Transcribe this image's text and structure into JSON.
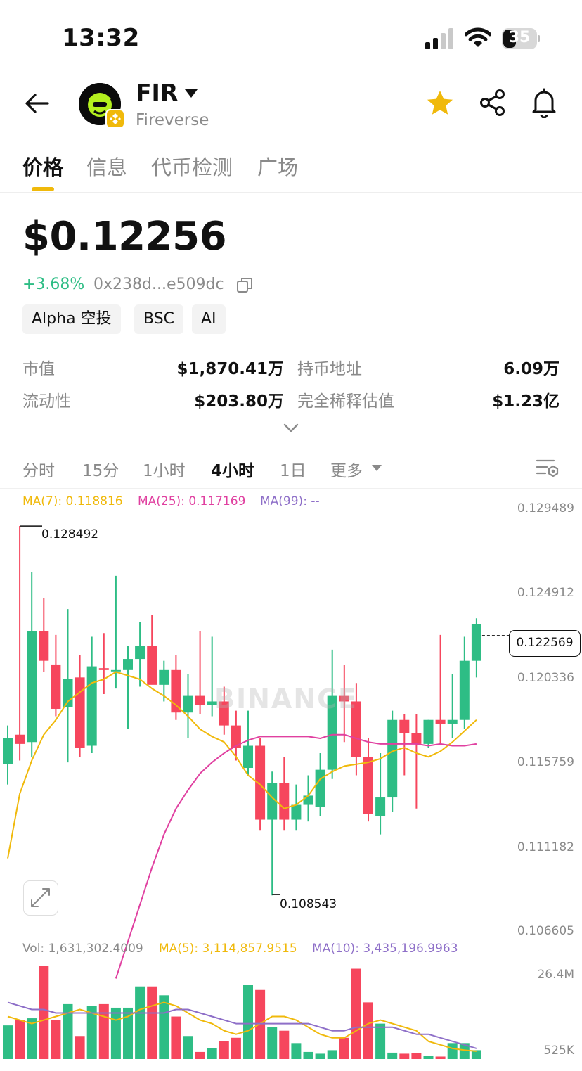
{
  "status_bar": {
    "time": "13:32",
    "battery": "35"
  },
  "header": {
    "symbol": "FIR",
    "name": "Fireverse"
  },
  "tabs": [
    "价格",
    "信息",
    "代币检测",
    "广场"
  ],
  "price": {
    "value": "$0.12256",
    "change": "+3.68%",
    "address": "0x238d...e509dc"
  },
  "tags": [
    "Alpha 空投",
    "BSC",
    "AI"
  ],
  "stats": [
    {
      "label": "市值",
      "value": "$1,870.41万"
    },
    {
      "label": "持币地址",
      "value": "6.09万"
    },
    {
      "label": "流动性",
      "value": "$203.80万"
    },
    {
      "label": "完全稀释估值",
      "value": "$1.23亿"
    }
  ],
  "intervals": [
    "分时",
    "15分",
    "1小时",
    "4小时",
    "1日",
    "更多"
  ],
  "active_interval": "4小时",
  "ma_legend": {
    "ma7": "MA(7): 0.118816",
    "ma25": "MA(25): 0.117169",
    "ma99": "MA(99): --"
  },
  "vol_legend": {
    "vol": "Vol: 1,631,302.4009",
    "ma5": "MA(5): 3,114,857.9515",
    "ma10": "MA(10): 3,435,196.9963"
  },
  "watermark": "BINANCE",
  "chart_data": {
    "type": "candlestick",
    "price_axis": [
      "0.129489",
      "0.124912",
      "0.120336",
      "0.115759",
      "0.111182",
      "0.106605"
    ],
    "volume_axis": [
      "26.4M",
      "525K"
    ],
    "current_price": "0.122569",
    "high_annotation": "0.128492",
    "low_annotation": "0.108543",
    "colors": {
      "up": "#2EBD85",
      "down": "#F6465D",
      "ma7": "#F0B90B",
      "ma25": "#E040A0",
      "vol_ma5": "#F0B90B",
      "vol_ma10": "#8E6FC8"
    },
    "candles": [
      {
        "o": 0.1156,
        "h": 0.1177,
        "l": 0.1145,
        "c": 0.117
      },
      {
        "o": 0.1172,
        "h": 0.1285,
        "l": 0.1158,
        "c": 0.1167
      },
      {
        "o": 0.1168,
        "h": 0.126,
        "l": 0.116,
        "c": 0.1228
      },
      {
        "o": 0.1228,
        "h": 0.1246,
        "l": 0.1206,
        "c": 0.1212
      },
      {
        "o": 0.121,
        "h": 0.1226,
        "l": 0.1182,
        "c": 0.1186
      },
      {
        "o": 0.1187,
        "h": 0.124,
        "l": 0.1157,
        "c": 0.1202
      },
      {
        "o": 0.1203,
        "h": 0.1215,
        "l": 0.116,
        "c": 0.1165
      },
      {
        "o": 0.1166,
        "h": 0.1225,
        "l": 0.1162,
        "c": 0.1209
      },
      {
        "o": 0.1208,
        "h": 0.1227,
        "l": 0.1194,
        "c": 0.1207
      },
      {
        "o": 0.1207,
        "h": 0.1258,
        "l": 0.1197,
        "c": 0.1207
      },
      {
        "o": 0.1207,
        "h": 0.122,
        "l": 0.1175,
        "c": 0.1213
      },
      {
        "o": 0.1213,
        "h": 0.1233,
        "l": 0.1198,
        "c": 0.122
      },
      {
        "o": 0.122,
        "h": 0.1237,
        "l": 0.12,
        "c": 0.1199
      },
      {
        "o": 0.1199,
        "h": 0.1212,
        "l": 0.119,
        "c": 0.1207
      },
      {
        "o": 0.1207,
        "h": 0.1215,
        "l": 0.118,
        "c": 0.1184
      },
      {
        "o": 0.1184,
        "h": 0.1205,
        "l": 0.117,
        "c": 0.1193
      },
      {
        "o": 0.1193,
        "h": 0.1228,
        "l": 0.1183,
        "c": 0.1188
      },
      {
        "o": 0.1188,
        "h": 0.1225,
        "l": 0.1182,
        "c": 0.119
      },
      {
        "o": 0.119,
        "h": 0.1198,
        "l": 0.1172,
        "c": 0.1177
      },
      {
        "o": 0.1177,
        "h": 0.1185,
        "l": 0.1158,
        "c": 0.1165
      },
      {
        "o": 0.1154,
        "h": 0.1185,
        "l": 0.115,
        "c": 0.1166
      },
      {
        "o": 0.1166,
        "h": 0.117,
        "l": 0.112,
        "c": 0.1126
      },
      {
        "o": 0.1126,
        "h": 0.1152,
        "l": 0.1085,
        "c": 0.1146
      },
      {
        "o": 0.1146,
        "h": 0.116,
        "l": 0.112,
        "c": 0.1126
      },
      {
        "o": 0.1126,
        "h": 0.1145,
        "l": 0.112,
        "c": 0.1134
      },
      {
        "o": 0.1134,
        "h": 0.115,
        "l": 0.1125,
        "c": 0.1139
      },
      {
        "o": 0.1133,
        "h": 0.1162,
        "l": 0.1128,
        "c": 0.1153
      },
      {
        "o": 0.1153,
        "h": 0.1218,
        "l": 0.1148,
        "c": 0.1193
      },
      {
        "o": 0.1193,
        "h": 0.121,
        "l": 0.1168,
        "c": 0.119
      },
      {
        "o": 0.119,
        "h": 0.12,
        "l": 0.115,
        "c": 0.116
      },
      {
        "o": 0.116,
        "h": 0.117,
        "l": 0.1125,
        "c": 0.1129
      },
      {
        "o": 0.1128,
        "h": 0.1162,
        "l": 0.1118,
        "c": 0.1138
      },
      {
        "o": 0.1138,
        "h": 0.1185,
        "l": 0.113,
        "c": 0.118
      },
      {
        "o": 0.118,
        "h": 0.1183,
        "l": 0.115,
        "c": 0.1173
      },
      {
        "o": 0.1173,
        "h": 0.1183,
        "l": 0.1132,
        "c": 0.1167
      },
      {
        "o": 0.1167,
        "h": 0.118,
        "l": 0.1165,
        "c": 0.118
      },
      {
        "o": 0.118,
        "h": 0.1226,
        "l": 0.1167,
        "c": 0.1178
      },
      {
        "o": 0.1178,
        "h": 0.1205,
        "l": 0.117,
        "c": 0.118
      },
      {
        "o": 0.118,
        "h": 0.1225,
        "l": 0.1175,
        "c": 0.1212
      },
      {
        "o": 0.1212,
        "h": 0.1235,
        "l": 0.1203,
        "c": 0.1232
      }
    ],
    "ma7": [
      0.1105,
      0.114,
      0.1158,
      0.1172,
      0.118,
      0.119,
      0.1195,
      0.12,
      0.1202,
      0.1206,
      0.1204,
      0.1202,
      0.1197,
      0.1193,
      0.1188,
      0.1182,
      0.1175,
      0.1171,
      0.1168,
      0.116,
      0.115,
      0.1145,
      0.1138,
      0.1132,
      0.1134,
      0.1139,
      0.1148,
      0.1152,
      0.1155,
      0.1156,
      0.1157,
      0.1159,
      0.1163,
      0.1165,
      0.1162,
      0.116,
      0.1163,
      0.1168,
      0.1174,
      0.118
    ],
    "ma25": [
      null,
      null,
      null,
      null,
      null,
      null,
      null,
      null,
      null,
      0.104,
      0.106,
      0.108,
      0.11,
      0.1118,
      0.1132,
      0.1142,
      0.1151,
      0.1157,
      0.1162,
      0.1166,
      0.1169,
      0.1171,
      0.1171,
      0.1171,
      0.1171,
      0.1171,
      0.117,
      0.1172,
      0.1172,
      0.117,
      0.1168,
      0.1167,
      0.1167,
      0.1167,
      0.1167,
      0.1166,
      0.1167,
      0.1166,
      0.1166,
      0.1167
    ],
    "volumes": [
      9.5,
      11,
      11.5,
      26.4,
      11,
      15.5,
      6.5,
      15,
      15.5,
      14.5,
      14.5,
      20.5,
      20.5,
      18,
      12,
      6.5,
      2,
      3,
      5,
      6,
      21,
      19.5,
      9,
      8,
      4.5,
      2,
      1.5,
      2.5,
      6,
      25.5,
      16,
      10,
      1.8,
      1.5,
      1.6,
      0.8,
      0.7,
      4.5,
      4.5,
      2.5
    ],
    "vol_ma5": [
      12,
      11,
      10,
      11,
      12,
      13,
      14,
      13,
      12,
      11,
      12,
      14,
      15,
      16,
      15,
      13,
      11,
      10,
      8,
      7,
      8,
      10,
      12,
      12,
      11,
      9,
      7,
      6,
      6,
      8,
      10,
      11,
      10,
      9,
      8,
      5,
      4,
      3,
      2.5,
      2.2
    ],
    "vol_ma10": [
      16,
      15,
      14,
      14,
      13,
      13,
      13,
      13,
      13,
      13,
      13,
      13,
      13,
      13,
      14,
      14,
      13,
      12,
      11,
      10,
      10,
      10,
      10,
      10,
      10,
      10,
      9,
      8,
      8,
      9,
      9,
      9,
      9,
      8,
      7,
      7,
      6,
      5,
      4,
      3
    ]
  }
}
